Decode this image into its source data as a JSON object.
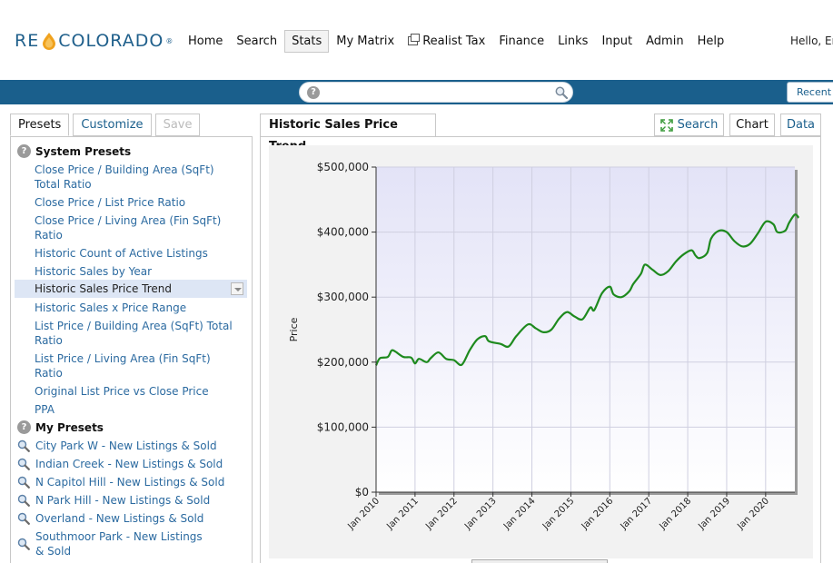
{
  "header": {
    "logo_re": "RE",
    "logo_co": "COLORADO",
    "logo_reg": "®",
    "nav": [
      "Home",
      "Search",
      "Stats",
      "My Matrix",
      "Realist Tax",
      "Finance",
      "Links",
      "Input",
      "Admin",
      "Help"
    ],
    "active_nav": "Stats",
    "hello": "Hello, Er"
  },
  "searchbar": {
    "value": "",
    "help": "?",
    "recent_label": "Recent"
  },
  "left": {
    "tabs": {
      "presets": "Presets",
      "customize": "Customize",
      "save": "Save"
    },
    "system_presets_title": "System Presets",
    "system_presets": [
      "Close Price / Building Area (SqFt) Total Ratio",
      "Close Price / List Price Ratio",
      "Close Price / Living Area (Fin SqFt) Ratio",
      "Historic Count of Active Listings",
      "Historic Sales by Year",
      "Historic Sales Price Trend",
      "Historic Sales x Price Range",
      "List Price / Building Area (SqFt) Total Ratio",
      "List Price / Living Area (Fin SqFt) Ratio",
      "Original List Price vs Close Price",
      "PPA"
    ],
    "selected_preset": "Historic Sales Price Trend",
    "my_presets_title": "My Presets",
    "my_presets": [
      "City Park W - New Listings & Sold",
      "Indian Creek - New Listings & Sold",
      "N Capitol Hill - New Listings & Sold",
      "N Park Hill - New Listings & Sold",
      "Overland - New Listings & Sold",
      "Southmoor Park - New Listings & Sold"
    ]
  },
  "right": {
    "title": "Historic Sales Price Trend",
    "tabs": {
      "search": "Search",
      "chart": "Chart",
      "data": "Data"
    }
  },
  "colors": {
    "brand_blue": "#1a5f8c",
    "link_blue": "#2b6aa0",
    "line_green": "#1e8a1e",
    "plot_bg_top": "#e3e3f7"
  },
  "chart_data": {
    "type": "line",
    "title": "",
    "xlabel": "",
    "ylabel": "Price",
    "ylim": [
      0,
      500000
    ],
    "yticks": [
      0,
      100000,
      200000,
      300000,
      400000,
      500000
    ],
    "ytick_labels": [
      "$0",
      "$100,000",
      "$200,000",
      "$300,000",
      "$400,000",
      "$500,000"
    ],
    "xtick_labels": [
      "Jan 2010",
      "Jan 2011",
      "Jan 2012",
      "Jan 2013",
      "Jan 2014",
      "Jan 2015",
      "Jan 2016",
      "Jan 2017",
      "Jan 2018",
      "Jan 2019",
      "Jan 2020"
    ],
    "xlim": [
      2010.0,
      2020.75
    ],
    "grid": true,
    "series": [
      {
        "values": [
          [
            2010.0,
            195000
          ],
          [
            2010.1,
            206000
          ],
          [
            2010.3,
            208000
          ],
          [
            2010.4,
            218000
          ],
          [
            2010.5,
            216000
          ],
          [
            2010.7,
            208000
          ],
          [
            2010.9,
            207000
          ],
          [
            2011.0,
            198000
          ],
          [
            2011.1,
            205000
          ],
          [
            2011.3,
            200000
          ],
          [
            2011.4,
            206000
          ],
          [
            2011.6,
            215000
          ],
          [
            2011.8,
            205000
          ],
          [
            2012.0,
            203000
          ],
          [
            2012.2,
            196000
          ],
          [
            2012.4,
            218000
          ],
          [
            2012.6,
            235000
          ],
          [
            2012.8,
            240000
          ],
          [
            2012.9,
            232000
          ],
          [
            2013.2,
            228000
          ],
          [
            2013.4,
            224000
          ],
          [
            2013.6,
            240000
          ],
          [
            2013.9,
            258000
          ],
          [
            2014.1,
            252000
          ],
          [
            2014.3,
            246000
          ],
          [
            2014.5,
            250000
          ],
          [
            2014.7,
            267000
          ],
          [
            2014.9,
            277000
          ],
          [
            2015.1,
            270000
          ],
          [
            2015.3,
            266000
          ],
          [
            2015.5,
            284000
          ],
          [
            2015.6,
            280000
          ],
          [
            2015.8,
            306000
          ],
          [
            2016.0,
            316000
          ],
          [
            2016.1,
            304000
          ],
          [
            2016.3,
            300000
          ],
          [
            2016.5,
            309000
          ],
          [
            2016.6,
            320000
          ],
          [
            2016.8,
            336000
          ],
          [
            2016.9,
            350000
          ],
          [
            2017.1,
            342000
          ],
          [
            2017.3,
            334000
          ],
          [
            2017.5,
            340000
          ],
          [
            2017.7,
            355000
          ],
          [
            2017.9,
            366000
          ],
          [
            2018.1,
            372000
          ],
          [
            2018.2,
            364000
          ],
          [
            2018.3,
            360000
          ],
          [
            2018.5,
            368000
          ],
          [
            2018.6,
            390000
          ],
          [
            2018.8,
            402000
          ],
          [
            2019.0,
            400000
          ],
          [
            2019.2,
            386000
          ],
          [
            2019.4,
            378000
          ],
          [
            2019.6,
            382000
          ],
          [
            2019.8,
            398000
          ],
          [
            2020.0,
            416000
          ],
          [
            2020.2,
            412000
          ],
          [
            2020.3,
            400000
          ],
          [
            2020.5,
            402000
          ],
          [
            2020.6,
            414000
          ],
          [
            2020.75,
            427000
          ],
          [
            2020.85,
            422000
          ]
        ]
      }
    ]
  }
}
